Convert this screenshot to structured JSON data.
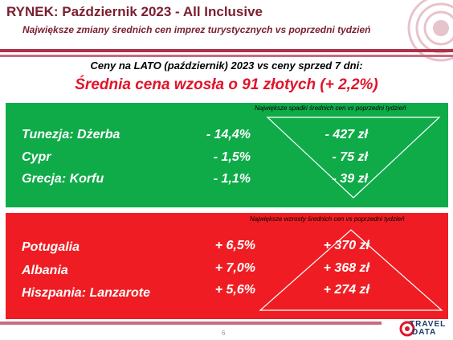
{
  "header": {
    "title": "RYNEK: Październik 2023 - All Inclusive",
    "subtitle": "Największe zmiany średnich cen imprez turystycznych vs poprzedni tydzień"
  },
  "summary": {
    "line1": "Ceny na LATO (październik) 2023 vs ceny sprzed 7 dni:",
    "line2": "Średnia cena wzosła o 91 złotych (+ 2,2%)"
  },
  "decreases": {
    "caption": "Największe spadki średnich cen vs poprzedni tydzień",
    "rows": [
      {
        "name": "Tunezja: Dżerba",
        "pct": "- 14,4%",
        "zl": "- 427 zł"
      },
      {
        "name": "Cypr",
        "pct": "- 1,5%",
        "zl": "- 75 zł"
      },
      {
        "name": "Grecja: Korfu",
        "pct": "- 1,1%",
        "zl": "- 39 zł"
      }
    ]
  },
  "increases": {
    "caption": "Największe wzrosty średnich cen vs poprzedni tydzień",
    "rows": [
      {
        "name": "Potugalia",
        "pct": "+ 6,5%",
        "zl": "+ 370 zł"
      },
      {
        "name": "Albania",
        "pct": "+ 7,0%",
        "zl": "+ 368 zł"
      },
      {
        "name": "Hiszpania: Lanzarote",
        "pct": "+ 5,6%",
        "zl": "+ 274 zł"
      }
    ]
  },
  "footer": {
    "page_number": "6",
    "logo_line1": "TRAVEL",
    "logo_line2": "DATA"
  },
  "colors": {
    "title": "#7a1f2f",
    "highlight": "#e0142a",
    "green_box": "#0fab48",
    "red_box": "#ef1d23"
  }
}
